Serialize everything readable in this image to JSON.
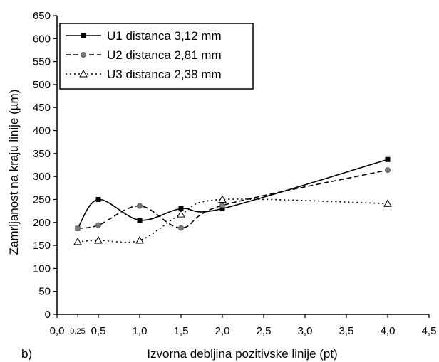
{
  "panel_label": "b)",
  "chart_data": {
    "type": "line",
    "xlabel": "Izvorna debljina pozitivske linije (pt)",
    "ylabel": "Zamrljanost na kraju linije (µm)",
    "xlim": [
      0,
      4.5
    ],
    "ylim": [
      0,
      650
    ],
    "x_ticks": [
      "0,0",
      "0,5",
      "1,0",
      "1,5",
      "2,0",
      "2,5",
      "3,0",
      "3,5",
      "4,0",
      "4,5"
    ],
    "x_ticks_values": [
      0,
      0.5,
      1.0,
      1.5,
      2.0,
      2.5,
      3.0,
      3.5,
      4.0,
      4.5
    ],
    "x_extra_tick": {
      "label": "0,25",
      "value": 0.25
    },
    "y_ticks": [
      "0",
      "50",
      "100",
      "150",
      "200",
      "250",
      "300",
      "350",
      "400",
      "450",
      "500",
      "550",
      "600",
      "650"
    ],
    "y_ticks_values": [
      0,
      50,
      100,
      150,
      200,
      250,
      300,
      350,
      400,
      450,
      500,
      550,
      600,
      650
    ],
    "grid": false,
    "legend_position": "top-left",
    "x": [
      0.25,
      0.5,
      1.0,
      1.5,
      2.0,
      4.0
    ],
    "series": [
      {
        "name": "U1 distanca 3,12 mm",
        "values": [
          187,
          250,
          205,
          230,
          230,
          337
        ],
        "line": "solid",
        "marker": "filled-square",
        "color": "#000000"
      },
      {
        "name": "U2 distanca 2,81 mm",
        "values": [
          187,
          194,
          236,
          188,
          237,
          314
        ],
        "line": "dashed",
        "marker": "filled-circle",
        "color": "#000000"
      },
      {
        "name": "U3 distanca 2,38 mm",
        "values": [
          158,
          161,
          161,
          218,
          250,
          241
        ],
        "line": "dotted",
        "marker": "open-triangle",
        "color": "#000000"
      }
    ]
  }
}
